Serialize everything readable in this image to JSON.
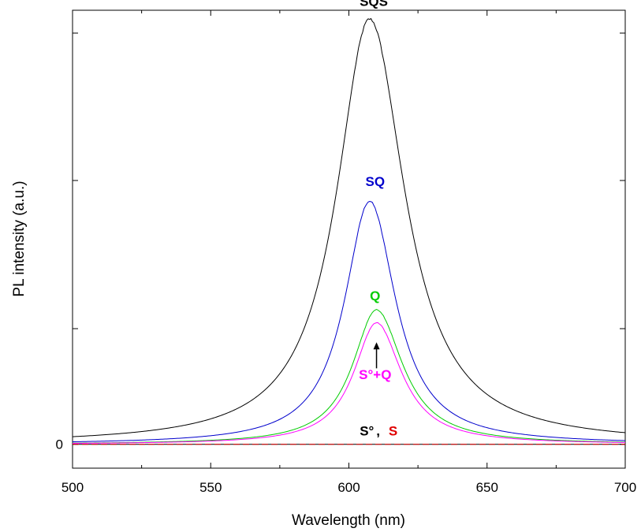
{
  "chart_data": {
    "type": "line",
    "title": "",
    "xlabel": "Wavelength (nm)",
    "ylabel": "PL intensity (a.u.)",
    "xlim": [
      500,
      700
    ],
    "ylim": [
      -0.055,
      1.0
    ],
    "x_ticks": [
      500,
      550,
      600,
      650,
      700
    ],
    "y_ticks": [
      0
    ],
    "grid": false,
    "legend": "none",
    "series": [
      {
        "name": "SQS",
        "color": "#000000",
        "center": 607.5,
        "sigma_left": 14.5,
        "sigma_right": 15.5,
        "x": [
          500,
          520,
          540,
          560,
          570,
          580,
          590,
          595,
          600,
          603,
          606,
          607.5,
          609,
          612,
          615,
          620,
          625,
          630,
          640,
          650,
          660,
          680,
          700
        ],
        "y": [
          0.003,
          0.004,
          0.008,
          0.025,
          0.05,
          0.12,
          0.39,
          0.56,
          0.78,
          0.9,
          0.97,
          0.98,
          0.97,
          0.92,
          0.84,
          0.68,
          0.5,
          0.34,
          0.14,
          0.05,
          0.022,
          0.008,
          0.004
        ]
      },
      {
        "name": "SQ",
        "color": "#0000cc",
        "center": 607.5,
        "sigma_left": 11.0,
        "sigma_right": 11.5,
        "x": [
          500,
          540,
          560,
          570,
          580,
          590,
          595,
          600,
          604,
          607.5,
          611,
          615,
          620,
          625,
          630,
          640,
          650,
          660,
          700
        ],
        "y": [
          0.002,
          0.004,
          0.012,
          0.025,
          0.07,
          0.21,
          0.33,
          0.45,
          0.53,
          0.56,
          0.53,
          0.45,
          0.33,
          0.21,
          0.11,
          0.03,
          0.012,
          0.006,
          0.002
        ]
      },
      {
        "name": "Q",
        "color": "#00cc00",
        "center": 610,
        "sigma_left": 10.5,
        "sigma_right": 11.5,
        "x": [
          500,
          560,
          570,
          580,
          590,
          595,
          600,
          605,
          610,
          615,
          620,
          625,
          630,
          640,
          650,
          660,
          700
        ],
        "y": [
          0.001,
          0.005,
          0.012,
          0.04,
          0.12,
          0.19,
          0.25,
          0.29,
          0.31,
          0.29,
          0.24,
          0.17,
          0.1,
          0.03,
          0.01,
          0.004,
          0.001
        ]
      },
      {
        "name": "S°+Q",
        "color": "#ff00ff",
        "center": 610,
        "sigma_left": 10.0,
        "sigma_right": 11.0,
        "x": [
          500,
          560,
          570,
          580,
          590,
          595,
          600,
          605,
          610,
          615,
          620,
          625,
          630,
          640,
          650,
          660,
          700
        ],
        "y": [
          0.0,
          0.004,
          0.01,
          0.035,
          0.11,
          0.17,
          0.23,
          0.27,
          0.28,
          0.26,
          0.21,
          0.15,
          0.09,
          0.025,
          0.008,
          0.003,
          0.0
        ]
      },
      {
        "name": "S°",
        "color": "#000000",
        "x": [
          500,
          700
        ],
        "y": [
          0.0,
          0.0
        ]
      },
      {
        "name": "S",
        "color": "#e00000",
        "x": [
          500,
          700
        ],
        "y": [
          0.0,
          0.0
        ]
      }
    ],
    "annotations": [
      {
        "text": "SQS",
        "color": "#000000",
        "x": 609,
        "y": 1.01
      },
      {
        "text": "SQ",
        "color": "#0000cc",
        "x": 609.5,
        "y": 0.595
      },
      {
        "text": "Q",
        "color": "#00cc00",
        "x": 609.5,
        "y": 0.332
      },
      {
        "text": "S°+Q",
        "color": "#ff00ff",
        "x": 609.5,
        "y": 0.15
      },
      {
        "text": "S°",
        "color": "#000000",
        "x": 606.5,
        "y": 0.02
      },
      {
        "text": "S",
        "color": "#e00000",
        "x": 616,
        "y": 0.02
      }
    ],
    "arrow": {
      "x": 610,
      "y_from": 0.175,
      "y_to": 0.235,
      "color": "#000000"
    }
  }
}
